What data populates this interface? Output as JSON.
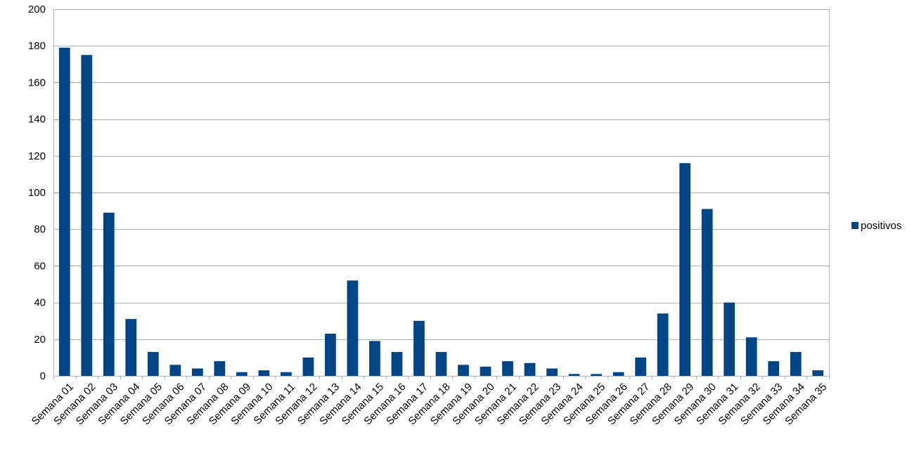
{
  "chart_data": {
    "type": "bar",
    "title": "",
    "xlabel": "",
    "ylabel": "",
    "ylim": [
      0,
      200
    ],
    "yticks": [
      0,
      20,
      40,
      60,
      80,
      100,
      120,
      140,
      160,
      180,
      200
    ],
    "grid": true,
    "legend_position": "right",
    "categories": [
      "Semana 01",
      "Semana 02",
      "Semana 03",
      "Semana 04",
      "Semana 05",
      "Semana 06",
      "Semana 07",
      "Semana 08",
      "Semana 09",
      "Semana 10",
      "Semana 11",
      "Semana 12",
      "Semana 13",
      "Semana 14",
      "Semana 15",
      "Semana 16",
      "Semana 17",
      "Semana 18",
      "Semana 19",
      "Semana 20",
      "Semana 21",
      "Semana 22",
      "Semana 23",
      "Semana 24",
      "Semana 25",
      "Semana 26",
      "Semana 27",
      "Semana 28",
      "Semana 29",
      "Semana 30",
      "Semana 31",
      "Semana 32",
      "Semana 33",
      "Semana 34",
      "Semana 35"
    ],
    "series": [
      {
        "name": "positivos",
        "color": "#004586",
        "values": [
          179,
          175,
          89,
          31,
          13,
          6,
          4,
          8,
          2,
          3,
          2,
          10,
          23,
          52,
          19,
          13,
          30,
          13,
          6,
          5,
          8,
          7,
          4,
          1,
          1,
          2,
          10,
          34,
          116,
          91,
          40,
          21,
          8,
          13,
          3
        ]
      }
    ]
  }
}
